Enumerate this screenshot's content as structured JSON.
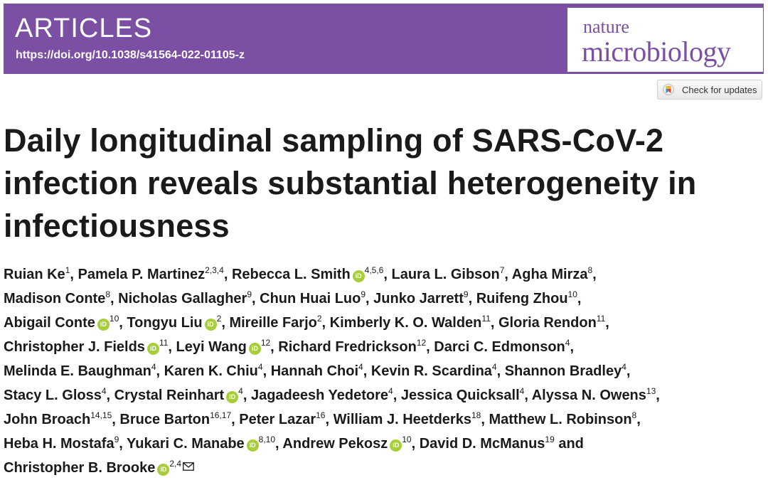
{
  "header": {
    "article_type": "ARTICLES",
    "doi": "https://doi.org/10.1038/s41564-022-01105-z",
    "journal_line1": "nature",
    "journal_line2": "microbiology",
    "brand_color": "#7b4fa3"
  },
  "check_updates": {
    "label": "Check for updates",
    "icon": "crossmark-icon"
  },
  "title": "Daily longitudinal sampling of SARS-CoV-2 infection reveals substantial heterogeneity in infectiousness",
  "orcid_badge": "iD",
  "authors": [
    {
      "name": "Ruian Ke",
      "sup": "1",
      "orcid": false
    },
    {
      "name": "Pamela P. Martinez",
      "sup": "2,3,4",
      "orcid": false
    },
    {
      "name": "Rebecca L. Smith",
      "sup": "4,5,6",
      "orcid": true
    },
    {
      "name": "Laura L. Gibson",
      "sup": "7",
      "orcid": false
    },
    {
      "name": "Agha Mirza",
      "sup": "8",
      "orcid": false
    },
    {
      "name": "Madison Conte",
      "sup": "8",
      "orcid": false
    },
    {
      "name": "Nicholas Gallagher",
      "sup": "9",
      "orcid": false
    },
    {
      "name": "Chun Huai Luo",
      "sup": "9",
      "orcid": false
    },
    {
      "name": "Junko Jarrett",
      "sup": "9",
      "orcid": false
    },
    {
      "name": "Ruifeng Zhou",
      "sup": "10",
      "orcid": false
    },
    {
      "name": "Abigail Conte",
      "sup": "10",
      "orcid": true
    },
    {
      "name": "Tongyu Liu",
      "sup": "2",
      "orcid": true
    },
    {
      "name": "Mireille Farjo",
      "sup": "2",
      "orcid": false
    },
    {
      "name": "Kimberly K. O. Walden",
      "sup": "11",
      "orcid": false
    },
    {
      "name": "Gloria Rendon",
      "sup": "11",
      "orcid": false
    },
    {
      "name": "Christopher J. Fields",
      "sup": "11",
      "orcid": true
    },
    {
      "name": "Leyi Wang",
      "sup": "12",
      "orcid": true
    },
    {
      "name": "Richard Fredrickson",
      "sup": "12",
      "orcid": false
    },
    {
      "name": "Darci C. Edmonson",
      "sup": "4",
      "orcid": false
    },
    {
      "name": "Melinda E. Baughman",
      "sup": "4",
      "orcid": false
    },
    {
      "name": "Karen K. Chiu",
      "sup": "4",
      "orcid": false
    },
    {
      "name": "Hannah Choi",
      "sup": "4",
      "orcid": false
    },
    {
      "name": "Kevin R. Scardina",
      "sup": "4",
      "orcid": false
    },
    {
      "name": "Shannon Bradley",
      "sup": "4",
      "orcid": false
    },
    {
      "name": "Stacy L. Gloss",
      "sup": "4",
      "orcid": false
    },
    {
      "name": "Crystal Reinhart",
      "sup": "4",
      "orcid": true
    },
    {
      "name": "Jagadeesh Yedetore",
      "sup": "4",
      "orcid": false
    },
    {
      "name": "Jessica Quicksall",
      "sup": "4",
      "orcid": false
    },
    {
      "name": "Alyssa N. Owens",
      "sup": "13",
      "orcid": false
    },
    {
      "name": "John Broach",
      "sup": "14,15",
      "orcid": false
    },
    {
      "name": "Bruce Barton",
      "sup": "16,17",
      "orcid": false
    },
    {
      "name": "Peter Lazar",
      "sup": "16",
      "orcid": false
    },
    {
      "name": "William J. Heetderks",
      "sup": "18",
      "orcid": false
    },
    {
      "name": "Matthew L. Robinson",
      "sup": "8",
      "orcid": false
    },
    {
      "name": "Heba H. Mostafa",
      "sup": "9",
      "orcid": false
    },
    {
      "name": "Yukari C. Manabe",
      "sup": "8,10",
      "orcid": true
    },
    {
      "name": "Andrew Pekosz",
      "sup": "10",
      "orcid": true
    },
    {
      "name": "David D. McManus",
      "sup": "19",
      "orcid": false
    },
    {
      "name": "Christopher B. Brooke",
      "sup": "2,4",
      "orcid": true,
      "corresponding": true
    }
  ],
  "author_separator": ", ",
  "final_separator": " and ",
  "linebreak_after": [
    4,
    9,
    14,
    18,
    23,
    28,
    33,
    37
  ],
  "corresponding_icon": "envelope-icon"
}
